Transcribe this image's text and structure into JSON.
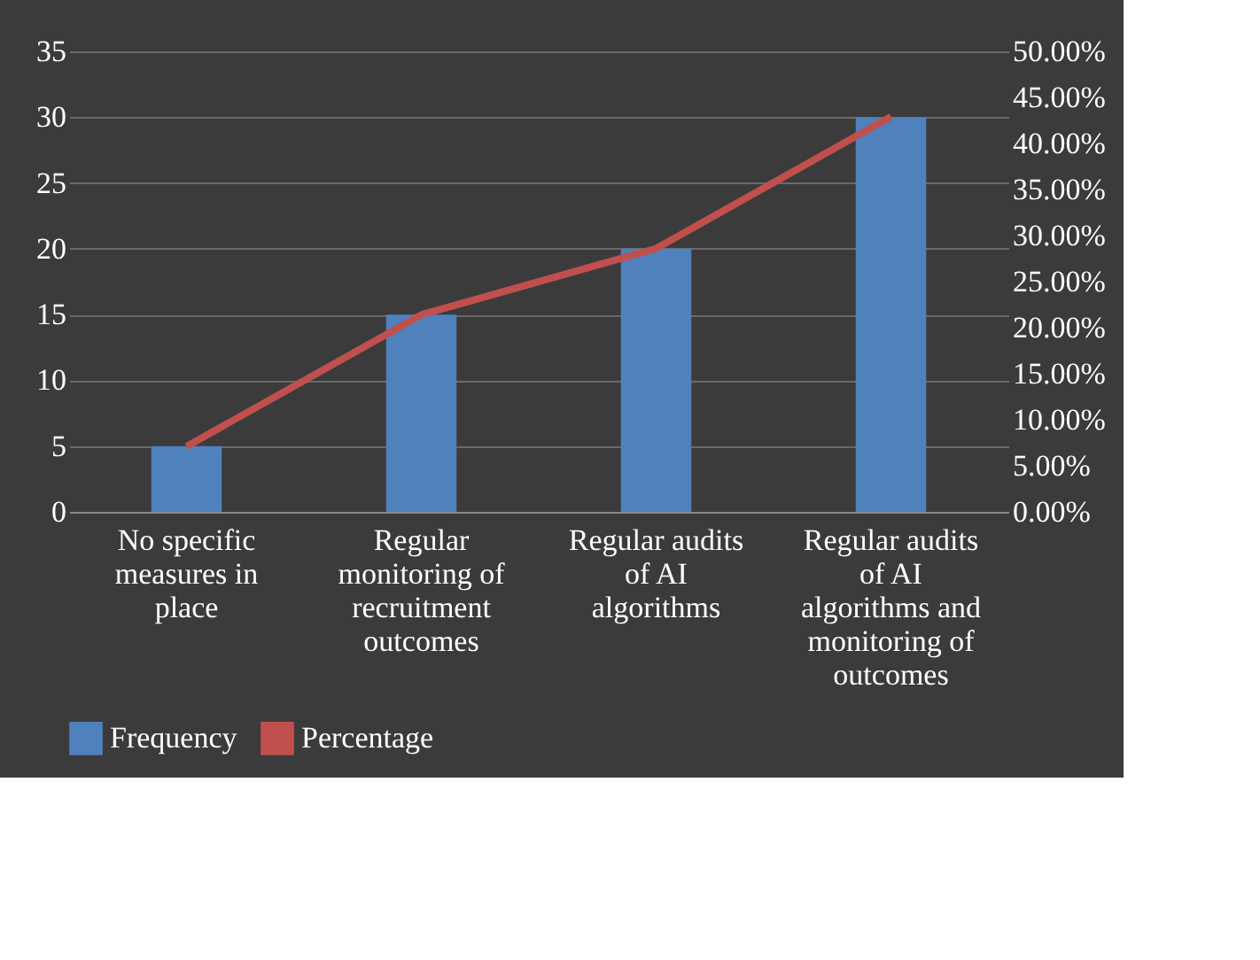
{
  "chart_data": {
    "type": "bar",
    "categories": [
      "No specific measures in place",
      "Regular monitoring of recruitment outcomes",
      "Regular audits of AI algorithms",
      "Regular audits of AI algorithms and monitoring of outcomes"
    ],
    "series": [
      {
        "name": "Frequency",
        "color": "#4f81bd",
        "values": [
          5,
          15,
          20,
          30
        ]
      },
      {
        "name": "Percentage",
        "type": "line",
        "axis": "y2",
        "color": "#c0504d",
        "values": [
          7.1,
          21.4,
          28.6,
          42.9
        ]
      }
    ],
    "ylim": [
      0,
      35
    ],
    "yticks": [
      0,
      5,
      10,
      15,
      20,
      25,
      30,
      35
    ],
    "y2lim": [
      0,
      50
    ],
    "y2ticks": [
      {
        "value": 0,
        "label": "0.00%"
      },
      {
        "value": 5,
        "label": "5.00%"
      },
      {
        "value": 10,
        "label": "10.00%"
      },
      {
        "value": 15,
        "label": "15.00%"
      },
      {
        "value": 20,
        "label": "20.00%"
      },
      {
        "value": 25,
        "label": "25.00%"
      },
      {
        "value": 30,
        "label": "30.00%"
      },
      {
        "value": 35,
        "label": "35.00%"
      },
      {
        "value": 40,
        "label": "40.00%"
      },
      {
        "value": 45,
        "label": "45.00%"
      },
      {
        "value": 50,
        "label": "50.00%"
      }
    ],
    "grid": "y",
    "legend": "bottom"
  }
}
